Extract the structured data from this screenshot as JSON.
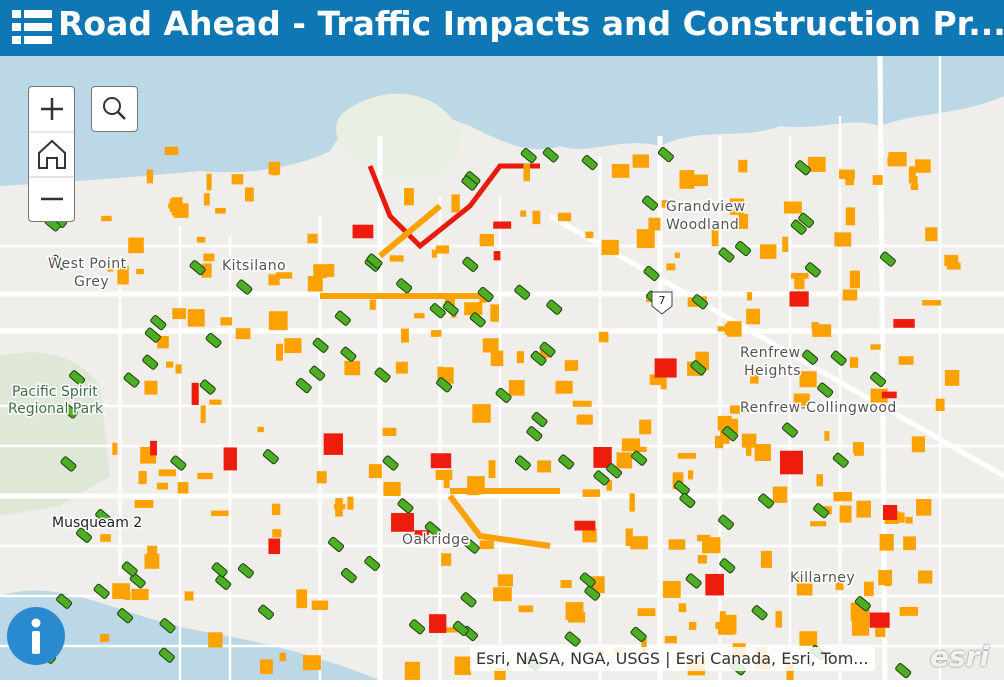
{
  "header": {
    "title": "Road Ahead - Traffic Impacts and Construction Pr..."
  },
  "map": {
    "labels": [
      "West Point",
      "Grey",
      "Kitsilano",
      "Grandview",
      "Woodland",
      "Renfrew",
      "Heights",
      "Renfrew-Collingwood",
      "Pacific Spirit",
      "Regional Park",
      "Musqueam 2",
      "Oakridge",
      "Killarney",
      "7"
    ],
    "attribution": "Esri, NASA, NGA, USGS | Esri Canada, Esri, Tom...",
    "logo": "esri"
  }
}
